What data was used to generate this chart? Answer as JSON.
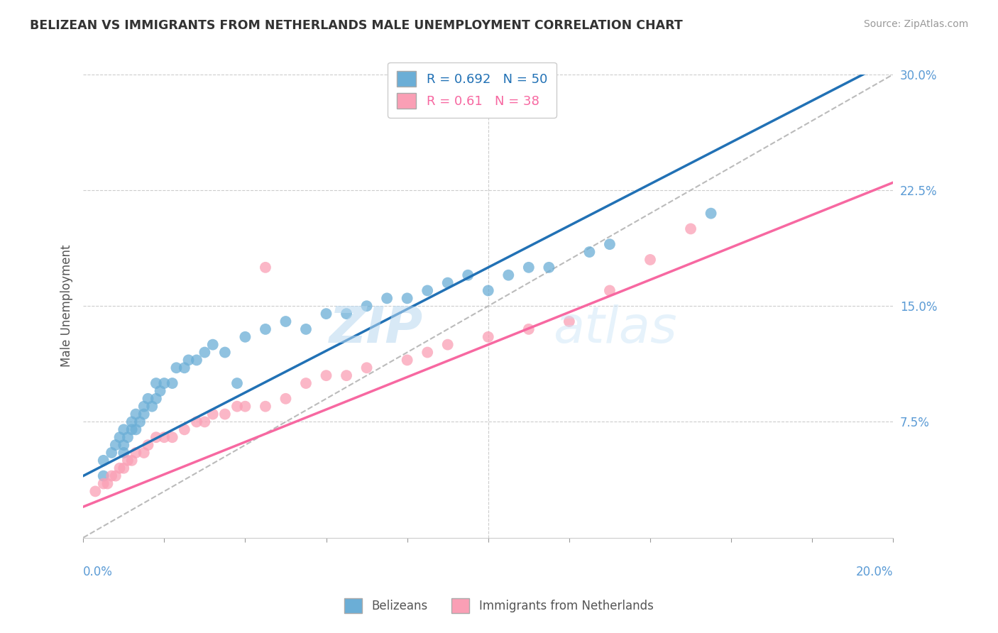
{
  "title": "BELIZEAN VS IMMIGRANTS FROM NETHERLANDS MALE UNEMPLOYMENT CORRELATION CHART",
  "source": "Source: ZipAtlas.com",
  "ylabel": "Male Unemployment",
  "xlim": [
    0.0,
    0.2
  ],
  "ylim": [
    0.0,
    0.3
  ],
  "blue_color": "#6baed6",
  "pink_color": "#fa9fb5",
  "blue_line_color": "#2171b5",
  "pink_line_color": "#f768a1",
  "R_blue": 0.692,
  "N_blue": 50,
  "R_pink": 0.61,
  "N_pink": 38,
  "blue_intercept": 0.04,
  "blue_slope": 1.35,
  "pink_intercept": 0.02,
  "pink_slope": 1.05,
  "watermark_zip": "ZIP",
  "watermark_atlas": "atlas",
  "background_color": "#ffffff",
  "grid_color": "#cccccc",
  "blue_x": [
    0.005,
    0.005,
    0.007,
    0.008,
    0.009,
    0.01,
    0.01,
    0.01,
    0.011,
    0.012,
    0.012,
    0.013,
    0.013,
    0.014,
    0.015,
    0.015,
    0.016,
    0.017,
    0.018,
    0.018,
    0.019,
    0.02,
    0.022,
    0.023,
    0.025,
    0.026,
    0.028,
    0.03,
    0.032,
    0.035,
    0.038,
    0.04,
    0.045,
    0.05,
    0.055,
    0.06,
    0.065,
    0.07,
    0.075,
    0.08,
    0.085,
    0.09,
    0.095,
    0.1,
    0.105,
    0.11,
    0.115,
    0.125,
    0.13,
    0.155
  ],
  "blue_y": [
    0.04,
    0.05,
    0.055,
    0.06,
    0.065,
    0.055,
    0.06,
    0.07,
    0.065,
    0.07,
    0.075,
    0.07,
    0.08,
    0.075,
    0.08,
    0.085,
    0.09,
    0.085,
    0.09,
    0.1,
    0.095,
    0.1,
    0.1,
    0.11,
    0.11,
    0.115,
    0.115,
    0.12,
    0.125,
    0.12,
    0.1,
    0.13,
    0.135,
    0.14,
    0.135,
    0.145,
    0.145,
    0.15,
    0.155,
    0.155,
    0.16,
    0.165,
    0.17,
    0.16,
    0.17,
    0.175,
    0.175,
    0.185,
    0.19,
    0.21
  ],
  "pink_x": [
    0.003,
    0.005,
    0.006,
    0.007,
    0.008,
    0.009,
    0.01,
    0.011,
    0.012,
    0.013,
    0.015,
    0.016,
    0.018,
    0.02,
    0.022,
    0.025,
    0.028,
    0.03,
    0.032,
    0.035,
    0.038,
    0.04,
    0.045,
    0.05,
    0.055,
    0.06,
    0.065,
    0.07,
    0.08,
    0.085,
    0.09,
    0.1,
    0.11,
    0.12,
    0.13,
    0.14,
    0.15,
    0.045
  ],
  "pink_y": [
    0.03,
    0.035,
    0.035,
    0.04,
    0.04,
    0.045,
    0.045,
    0.05,
    0.05,
    0.055,
    0.055,
    0.06,
    0.065,
    0.065,
    0.065,
    0.07,
    0.075,
    0.075,
    0.08,
    0.08,
    0.085,
    0.085,
    0.085,
    0.09,
    0.1,
    0.105,
    0.105,
    0.11,
    0.115,
    0.12,
    0.125,
    0.13,
    0.135,
    0.14,
    0.16,
    0.18,
    0.2,
    0.175
  ]
}
